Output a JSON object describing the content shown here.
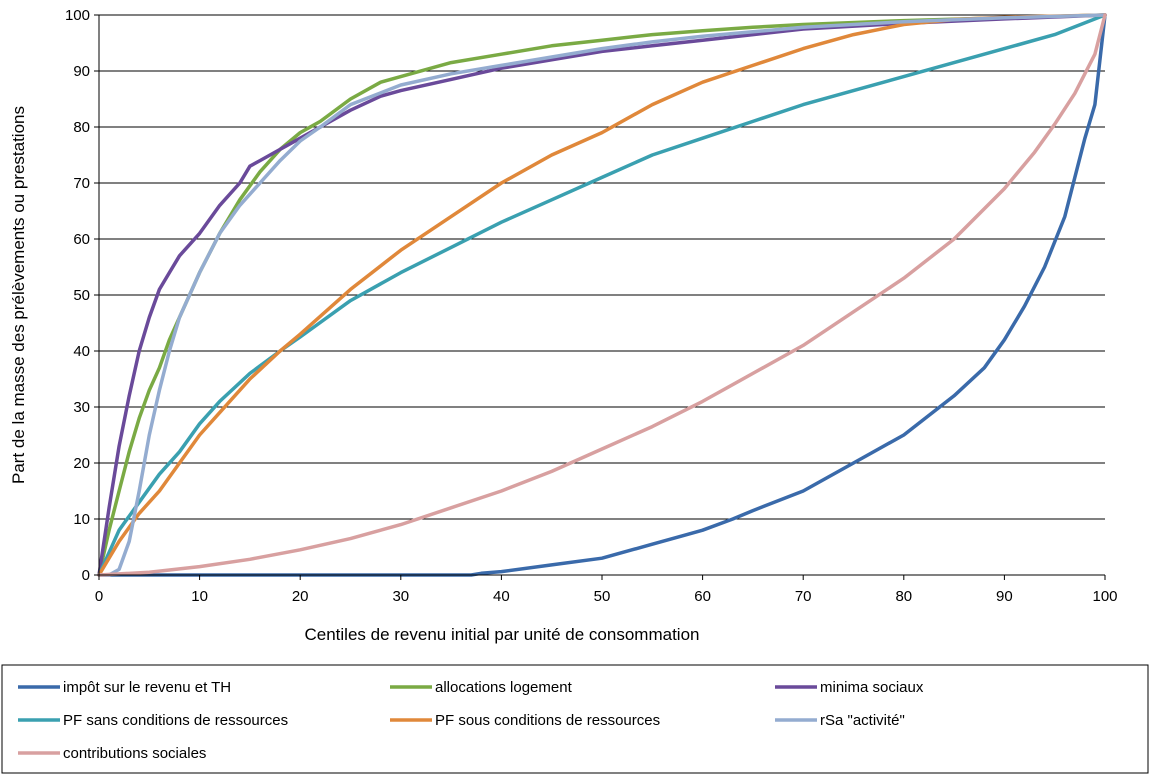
{
  "chart_data": {
    "type": "line",
    "title": "",
    "xlabel": "Centiles de revenu initial par unité de consommation",
    "ylabel": "Part de la masse des prélèvements ou prestations",
    "xlim": [
      0,
      100
    ],
    "ylim": [
      0,
      100
    ],
    "xticks": [
      0,
      10,
      20,
      30,
      40,
      50,
      60,
      70,
      80,
      90,
      100
    ],
    "yticks": [
      0,
      10,
      20,
      30,
      40,
      50,
      60,
      70,
      80,
      90,
      100
    ],
    "grid": "horizontal",
    "legend_position": "bottom",
    "series": [
      {
        "name": "impôt sur le revenu  et TH",
        "color": "#3a6aaa",
        "x": [
          0,
          10,
          20,
          30,
          37,
          38,
          40,
          45,
          50,
          52,
          55,
          58,
          60,
          63,
          65,
          70,
          75,
          80,
          85,
          88,
          90,
          92,
          94,
          96,
          98,
          99,
          100
        ],
        "y": [
          0,
          0,
          0,
          0,
          0,
          0.3,
          0.6,
          1.8,
          3,
          4,
          5.5,
          7,
          8,
          10,
          11.5,
          15,
          20,
          25,
          32,
          37,
          42,
          48,
          55,
          64,
          78,
          84,
          100
        ]
      },
      {
        "name": "allocations logement",
        "color": "#7aaa44",
        "x": [
          0,
          1,
          2,
          3,
          4,
          5,
          6,
          7,
          8,
          10,
          12,
          14,
          16,
          18,
          20,
          22,
          25,
          28,
          30,
          35,
          40,
          45,
          50,
          55,
          60,
          65,
          70,
          80,
          90,
          100
        ],
        "y": [
          0,
          8,
          15,
          22,
          28,
          33,
          37,
          42,
          46,
          54,
          61,
          67,
          72,
          76,
          79,
          81,
          85,
          88,
          89,
          91.5,
          93,
          94.5,
          95.5,
          96.5,
          97.2,
          97.8,
          98.3,
          99,
          99.5,
          100
        ]
      },
      {
        "name": "minima sociaux",
        "color": "#6a4a9a",
        "x": [
          0,
          1,
          2,
          3,
          4,
          5,
          6,
          7,
          8,
          10,
          12,
          14,
          15,
          16,
          18,
          20,
          22,
          25,
          28,
          30,
          35,
          40,
          45,
          50,
          55,
          60,
          65,
          70,
          80,
          90,
          100
        ],
        "y": [
          0,
          12,
          23,
          32,
          40,
          46,
          51,
          54,
          57,
          61,
          66,
          70,
          73,
          74,
          76,
          78,
          80,
          83,
          85.5,
          86.5,
          88.5,
          90.5,
          92,
          93.5,
          94.5,
          95.5,
          96.5,
          97.5,
          98.5,
          99.3,
          100
        ]
      },
      {
        "name": "PF sans conditions de ressources",
        "color": "#3aa0b0",
        "x": [
          0,
          2,
          4,
          6,
          8,
          10,
          12,
          15,
          18,
          20,
          25,
          30,
          35,
          40,
          45,
          50,
          55,
          60,
          65,
          70,
          75,
          80,
          85,
          90,
          95,
          100
        ],
        "y": [
          0,
          8,
          13,
          18,
          22,
          27,
          31,
          36,
          40,
          42.5,
          49,
          54,
          58.5,
          63,
          67,
          71,
          75,
          78,
          81,
          84,
          86.5,
          89,
          91.5,
          94,
          96.5,
          100
        ]
      },
      {
        "name": "PF sous conditions de ressources",
        "color": "#e0883a",
        "x": [
          0,
          2,
          4,
          6,
          8,
          10,
          12,
          15,
          18,
          20,
          25,
          30,
          35,
          40,
          45,
          50,
          55,
          60,
          65,
          70,
          75,
          80,
          85,
          90,
          95,
          100
        ],
        "y": [
          0,
          6,
          11,
          15,
          20,
          25,
          29,
          35,
          40,
          43,
          51,
          58,
          64,
          70,
          75,
          79,
          84,
          88,
          91,
          94,
          96.5,
          98.3,
          99.2,
          99.6,
          99.8,
          100
        ]
      },
      {
        "name": "rSa \"activité\"",
        "color": "#94acd0",
        "x": [
          0,
          1,
          2,
          3,
          4,
          5,
          6,
          7,
          8,
          10,
          12,
          14,
          16,
          18,
          20,
          22,
          25,
          30,
          35,
          40,
          45,
          50,
          55,
          60,
          65,
          70,
          80,
          90,
          100
        ],
        "y": [
          0,
          0,
          1,
          6,
          15,
          25,
          33,
          40,
          46,
          54,
          61,
          66,
          70,
          74,
          77.5,
          80,
          84,
          87.5,
          89.5,
          91,
          92.5,
          94,
          95.2,
          96.2,
          97,
          97.8,
          98.8,
          99.5,
          100
        ]
      },
      {
        "name": "contributions sociales",
        "color": "#d8a0a0",
        "x": [
          0,
          5,
          10,
          15,
          20,
          25,
          30,
          35,
          40,
          45,
          50,
          55,
          60,
          65,
          70,
          75,
          80,
          85,
          90,
          93,
          95,
          97,
          99,
          100
        ],
        "y": [
          0,
          0.5,
          1.5,
          2.8,
          4.5,
          6.5,
          9,
          12,
          15,
          18.5,
          22.5,
          26.5,
          31,
          36,
          41,
          47,
          53,
          60,
          69,
          75.5,
          80.5,
          86,
          93,
          100
        ]
      }
    ]
  }
}
